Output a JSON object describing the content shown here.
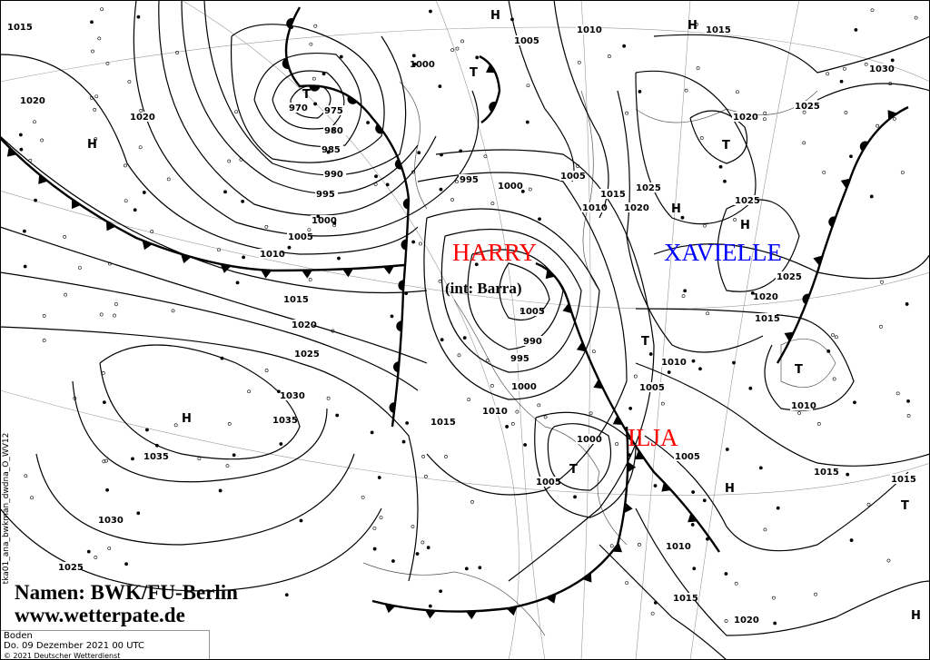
{
  "map": {
    "line_color": "#000000",
    "isobar_labels": [
      "1015",
      "1020",
      "1020",
      "970",
      "975",
      "980",
      "985",
      "990",
      "995",
      "1000",
      "1005",
      "1010",
      "1015",
      "1020",
      "1025",
      "1030",
      "1035",
      "1035",
      "1030",
      "1025",
      "1000",
      "1005",
      "1010",
      "995",
      "1000",
      "1005",
      "1010",
      "1015",
      "1020",
      "1025",
      "1015",
      "1020",
      "1025",
      "1030",
      "1025",
      "1025",
      "1020",
      "1015",
      "1010",
      "1005",
      "1000",
      "1005",
      "1010",
      "1015",
      "1015",
      "1020",
      "1015",
      "1010",
      "1005",
      "1000",
      "995",
      "990",
      "1005",
      "1010",
      "1015"
    ],
    "pressure_centers": {
      "high": "H",
      "low": "T"
    },
    "systems": [
      {
        "name": "HARRY",
        "color": "#ff0000"
      },
      {
        "name": "(int: Barra)",
        "color": "#000000"
      },
      {
        "name": "XAVIELLE",
        "color": "#0000ff"
      },
      {
        "name": "ILJA",
        "color": "#ff0000"
      }
    ]
  },
  "credit": {
    "line1": "Namen: BWK/FU-Berlin",
    "line2": "www.wetterpate.de"
  },
  "info": {
    "level": "Boden",
    "datetime": "Do. 09 Dezember 2021 00 UTC",
    "copyright": "© 2021 Deutscher Wetterdienst"
  },
  "product_id": "tka01_ana_bwkman_dwdna_O_WV12"
}
